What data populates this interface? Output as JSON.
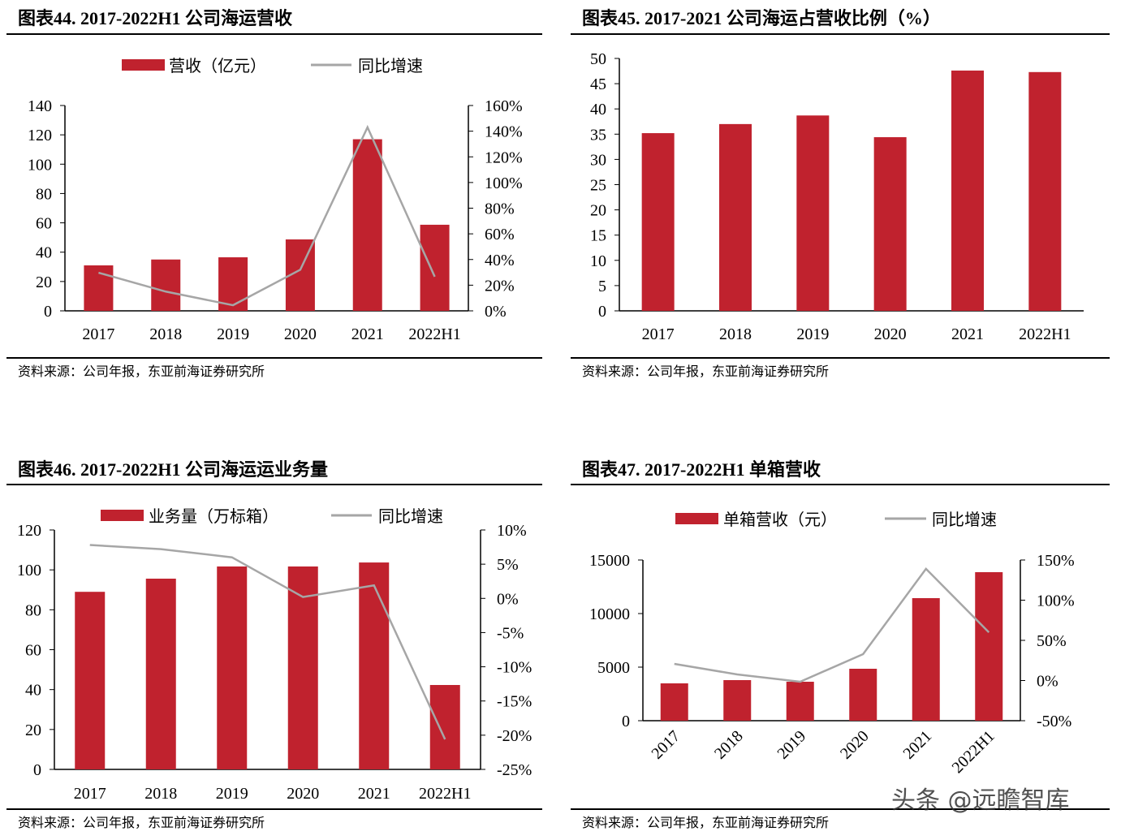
{
  "watermark": "头条 @远瞻智库",
  "colors": {
    "bar": "#c0222e",
    "line": "#a6a6a6",
    "axis": "#000000"
  },
  "chart_data": [
    {
      "type": "bar",
      "title": "图表44. 2017-2022H1 公司海运营收",
      "source": "资料来源：公司年报，东亚前海证券研究所",
      "categories": [
        "2017",
        "2018",
        "2019",
        "2020",
        "2021",
        "2022H1"
      ],
      "series": [
        {
          "name": "营收（亿元）",
          "kind": "bar",
          "axis": "left",
          "values": [
            31,
            35,
            36.5,
            48.7,
            117,
            58.7
          ]
        },
        {
          "name": "同比增速",
          "kind": "line",
          "axis": "right",
          "values": [
            29.7,
            15,
            4.4,
            32,
            143,
            26.6
          ]
        }
      ],
      "ylim": [
        0,
        140
      ],
      "yticks": [
        "0",
        "20",
        "40",
        "60",
        "80",
        "100",
        "120",
        "140"
      ],
      "y2lim": [
        0,
        160
      ],
      "y2ticks": [
        "0%",
        "20%",
        "40%",
        "60%",
        "80%",
        "100%",
        "120%",
        "140%",
        "160%"
      ],
      "legend": "top",
      "grid": false
    },
    {
      "type": "bar",
      "title": "图表45. 2017-2021 公司海运占营收比例（%）",
      "source": "资料来源：公司年报，东亚前海证券研究所",
      "categories": [
        "2017",
        "2018",
        "2019",
        "2020",
        "2021",
        "2022H1"
      ],
      "series": [
        {
          "kind": "bar",
          "axis": "left",
          "values": [
            35.2,
            37,
            38.7,
            34.4,
            47.6,
            47.3
          ]
        }
      ],
      "ylim": [
        0,
        50
      ],
      "yticks": [
        "0",
        "5",
        "10",
        "15",
        "20",
        "25",
        "30",
        "35",
        "40",
        "45",
        "50"
      ],
      "grid": false
    },
    {
      "type": "bar",
      "title": "图表46. 2017-2022H1 公司海运运业务量",
      "source": "资料来源：公司年报，东亚前海证券研究所",
      "categories": [
        "2017",
        "2018",
        "2019",
        "2020",
        "2021",
        "2022H1"
      ],
      "series": [
        {
          "name": "业务量（万标箱）",
          "kind": "bar",
          "axis": "left",
          "values": [
            89,
            95.6,
            101.7,
            101.7,
            103.7,
            42.3
          ]
        },
        {
          "name": "同比增速",
          "kind": "line",
          "axis": "right",
          "values": [
            7.8,
            7.2,
            6,
            0.2,
            1.9,
            -20.6
          ]
        }
      ],
      "ylim": [
        0,
        120
      ],
      "yticks": [
        "0",
        "20",
        "40",
        "60",
        "80",
        "100",
        "120"
      ],
      "y2lim": [
        -25,
        10
      ],
      "y2ticks": [
        "-25%",
        "-20%",
        "-15%",
        "-10%",
        "-5%",
        "0%",
        "5%",
        "10%"
      ],
      "legend": "top",
      "grid": false
    },
    {
      "type": "bar",
      "title": "图表47. 2017-2022H1 单箱营收",
      "source": "资料来源：公司年报，东亚前海证券研究所",
      "categories": [
        "2017",
        "2018",
        "2019",
        "2020",
        "2021",
        "2022H1"
      ],
      "series": [
        {
          "name": "单箱营收（元）",
          "kind": "bar",
          "axis": "left",
          "values": [
            3485,
            3788,
            3636,
            4848,
            11439,
            13864
          ]
        },
        {
          "name": "同比增速",
          "kind": "line",
          "axis": "right",
          "values": [
            20.7,
            7.6,
            -1.5,
            32.8,
            139,
            60
          ]
        }
      ],
      "ylim": [
        0,
        15000
      ],
      "yticks": [
        "0",
        "5000",
        "10000",
        "15000"
      ],
      "y2lim": [
        -50,
        150
      ],
      "y2ticks": [
        "-50%",
        "0%",
        "50%",
        "100%",
        "150%"
      ],
      "legend": "top",
      "grid": false
    }
  ]
}
